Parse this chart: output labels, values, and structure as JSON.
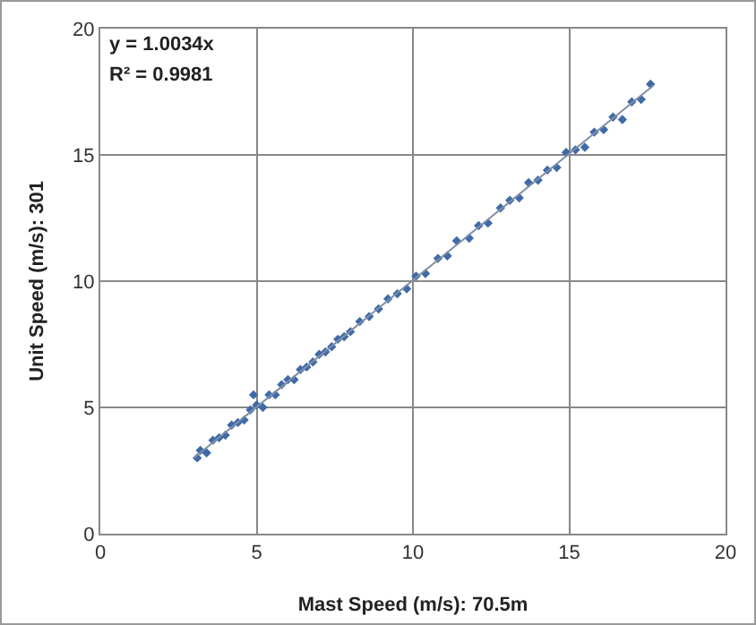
{
  "chart_data": {
    "type": "scatter",
    "xlabel": "Mast Speed (m/s): 70.5m",
    "ylabel": "Unit Speed (m/s): 301",
    "xlim": [
      0,
      20
    ],
    "ylim": [
      0,
      20
    ],
    "xticks": [
      0,
      5,
      10,
      15,
      20
    ],
    "yticks": [
      0,
      5,
      10,
      15,
      20
    ],
    "grid": true,
    "legend": false,
    "annotations": [
      "y = 1.0034x",
      "R² = 0.9981"
    ],
    "series": [
      {
        "color": "#3f6aa8",
        "marker": "diamond",
        "x": [
          3.1,
          3.2,
          3.4,
          3.6,
          3.8,
          4.0,
          4.2,
          4.4,
          4.6,
          4.8,
          4.9,
          5.0,
          5.2,
          5.4,
          5.6,
          5.8,
          6.0,
          6.2,
          6.4,
          6.6,
          6.8,
          7.0,
          7.2,
          7.4,
          7.6,
          7.8,
          8.0,
          8.3,
          8.6,
          8.9,
          9.2,
          9.5,
          9.8,
          10.1,
          10.4,
          10.8,
          11.1,
          11.4,
          11.8,
          12.1,
          12.4,
          12.8,
          13.1,
          13.4,
          13.7,
          14.0,
          14.3,
          14.6,
          14.9,
          15.2,
          15.5,
          15.8,
          16.1,
          16.4,
          16.7,
          17.0,
          17.3,
          17.6
        ],
        "values": [
          3.0,
          3.3,
          3.2,
          3.7,
          3.8,
          3.9,
          4.3,
          4.4,
          4.5,
          4.9,
          5.5,
          5.1,
          5.0,
          5.5,
          5.5,
          5.9,
          6.1,
          6.1,
          6.5,
          6.6,
          6.8,
          7.1,
          7.2,
          7.4,
          7.7,
          7.8,
          8.0,
          8.4,
          8.6,
          8.9,
          9.3,
          9.5,
          9.7,
          10.2,
          10.3,
          10.9,
          11.0,
          11.6,
          11.7,
          12.2,
          12.3,
          12.9,
          13.2,
          13.3,
          13.9,
          14.0,
          14.4,
          14.5,
          15.1,
          15.2,
          15.3,
          15.9,
          16.0,
          16.5,
          16.4,
          17.1,
          17.2,
          17.8
        ]
      },
      {
        "type": "line",
        "color": "#7f8fa6",
        "line_style": "solid",
        "x": [
          3,
          17.7
        ],
        "values": [
          3.01,
          17.76
        ]
      }
    ]
  }
}
